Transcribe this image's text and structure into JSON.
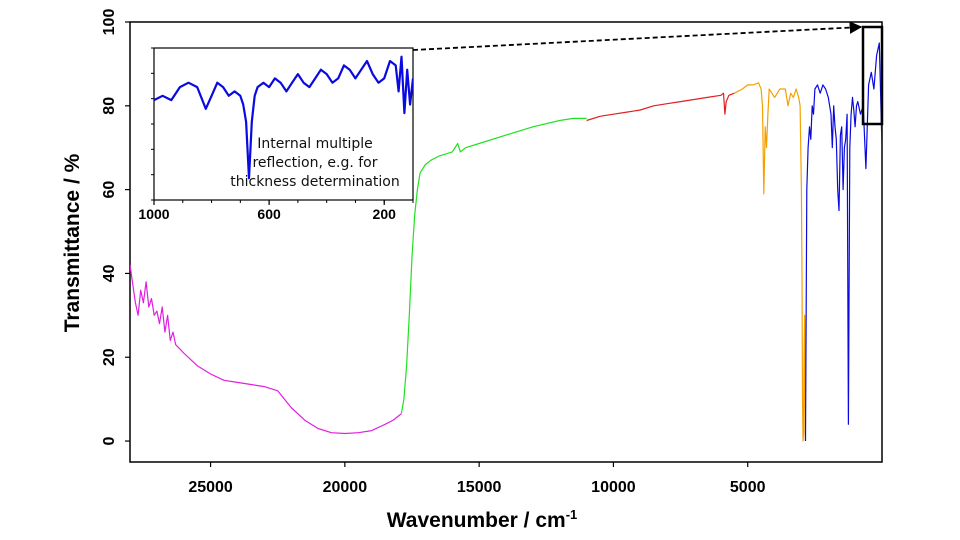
{
  "chart_data": [
    {
      "id": "main",
      "type": "line",
      "xlabel": "Wavenumber / cm",
      "xlabel_sup": "-1",
      "ylabel": "Transmittance / %",
      "xlim": [
        28000,
        0
      ],
      "ylim": [
        -5,
        100
      ],
      "x_ticks": [
        25000,
        20000,
        15000,
        10000,
        5000
      ],
      "y_ticks": [
        0,
        20,
        40,
        60,
        80,
        100
      ],
      "grid": false,
      "series": [
        {
          "color": "#e020e0",
          "x": [
            28000,
            27800,
            27700,
            27600,
            27500,
            27400,
            27300,
            27200,
            27100,
            27000,
            26900,
            26800,
            26700,
            26600,
            26500,
            26400,
            26300,
            26000,
            25500,
            25000,
            24500,
            24000,
            23500,
            23000,
            22500,
            22000,
            21500,
            21000,
            20500,
            20000,
            19500,
            19000,
            18500,
            18200,
            18000,
            17900
          ],
          "y": [
            42,
            33,
            30,
            36,
            33,
            38,
            32,
            34,
            30,
            31,
            28,
            32,
            26,
            30,
            24,
            26,
            23,
            21,
            18,
            16,
            14.5,
            14,
            13.5,
            13,
            12,
            8,
            5,
            3,
            2,
            1.8,
            2,
            2.5,
            4,
            5,
            6,
            6.5
          ]
        },
        {
          "color": "#22e022",
          "x": [
            17900,
            17800,
            17700,
            17600,
            17500,
            17400,
            17300,
            17200,
            17000,
            16800,
            16500,
            16000,
            15800,
            15700,
            15500,
            15000,
            14000,
            13000,
            12000,
            11500,
            11000
          ],
          "y": [
            6.5,
            10,
            18,
            30,
            44,
            54,
            60,
            64,
            66,
            67,
            68,
            69,
            71,
            69,
            70,
            71,
            73,
            75,
            76.5,
            77,
            77
          ]
        },
        {
          "color": "#e02020",
          "x": [
            11000,
            10500,
            10000,
            9500,
            9000,
            8500,
            8000,
            7500,
            7000,
            6500,
            6000,
            5900,
            5850,
            5800,
            5700,
            5500
          ],
          "y": [
            76.5,
            77.5,
            78,
            78.5,
            79,
            80,
            80.5,
            81,
            81.5,
            82,
            82.5,
            83,
            78,
            81,
            82.5,
            83
          ]
        },
        {
          "color": "#f5a000",
          "x": [
            5500,
            5200,
            5000,
            4800,
            4600,
            4500,
            4450,
            4400,
            4350,
            4300,
            4250,
            4200,
            4100,
            4000,
            3800,
            3600,
            3500,
            3400,
            3300,
            3200,
            3100,
            3050,
            3000,
            2980,
            2960,
            2940,
            2920,
            2900,
            2880,
            2860,
            2850
          ],
          "y": [
            83,
            84,
            85,
            85,
            85.5,
            84,
            80,
            59,
            75,
            70,
            78,
            84,
            83,
            82,
            84,
            84,
            80,
            83,
            82,
            84,
            82,
            80,
            60,
            40,
            10,
            0,
            2,
            20,
            30,
            2,
            0
          ]
        },
        {
          "color": "#0a0ae0",
          "x": [
            2850,
            2800,
            2750,
            2700,
            2650,
            2600,
            2550,
            2500,
            2400,
            2300,
            2200,
            2100,
            2000,
            1900,
            1850,
            1800,
            1750,
            1700,
            1650,
            1600,
            1550,
            1500,
            1450,
            1400,
            1350,
            1300,
            1250,
            1200,
            1150,
            1100,
            1050,
            1000,
            950,
            900,
            800,
            700,
            600,
            500,
            400,
            300,
            200,
            100,
            0
          ],
          "y": [
            0,
            60,
            70,
            75,
            72,
            80,
            78,
            84,
            85,
            83,
            85,
            84,
            82,
            78,
            70,
            80,
            75,
            72,
            60,
            55,
            73,
            75,
            60,
            70,
            72,
            78,
            4,
            70,
            78,
            82,
            79,
            75,
            80,
            81,
            78,
            80,
            65,
            85,
            88,
            84,
            92,
            95,
            70
          ]
        }
      ]
    },
    {
      "id": "inset",
      "type": "line",
      "xlim": [
        1000,
        100
      ],
      "ylim": [
        60,
        95
      ],
      "x_ticks": [
        1000,
        600,
        200
      ],
      "series": [
        {
          "color": "#0a0ae0",
          "x": [
            1000,
            970,
            940,
            910,
            880,
            850,
            820,
            800,
            780,
            760,
            740,
            720,
            700,
            690,
            680,
            670,
            660,
            650,
            640,
            620,
            600,
            580,
            560,
            540,
            520,
            500,
            480,
            460,
            440,
            420,
            400,
            380,
            360,
            340,
            320,
            300,
            280,
            260,
            240,
            220,
            200,
            180,
            160,
            150,
            140,
            130,
            120,
            110,
            100
          ],
          "y": [
            83,
            84,
            83,
            86,
            87,
            86,
            81,
            84,
            87,
            86,
            84,
            85,
            84,
            82,
            78,
            65,
            78,
            84,
            86,
            87,
            86,
            88,
            87,
            85,
            87,
            89,
            87,
            86,
            88,
            90,
            89,
            87,
            88,
            91,
            90,
            88,
            90,
            92,
            89,
            87,
            88,
            92,
            91,
            85,
            93,
            80,
            90,
            82,
            88
          ]
        }
      ]
    }
  ],
  "annotation": {
    "lines": [
      "Internal multiple",
      "reflection, e.g. for",
      "thickness determination"
    ]
  }
}
